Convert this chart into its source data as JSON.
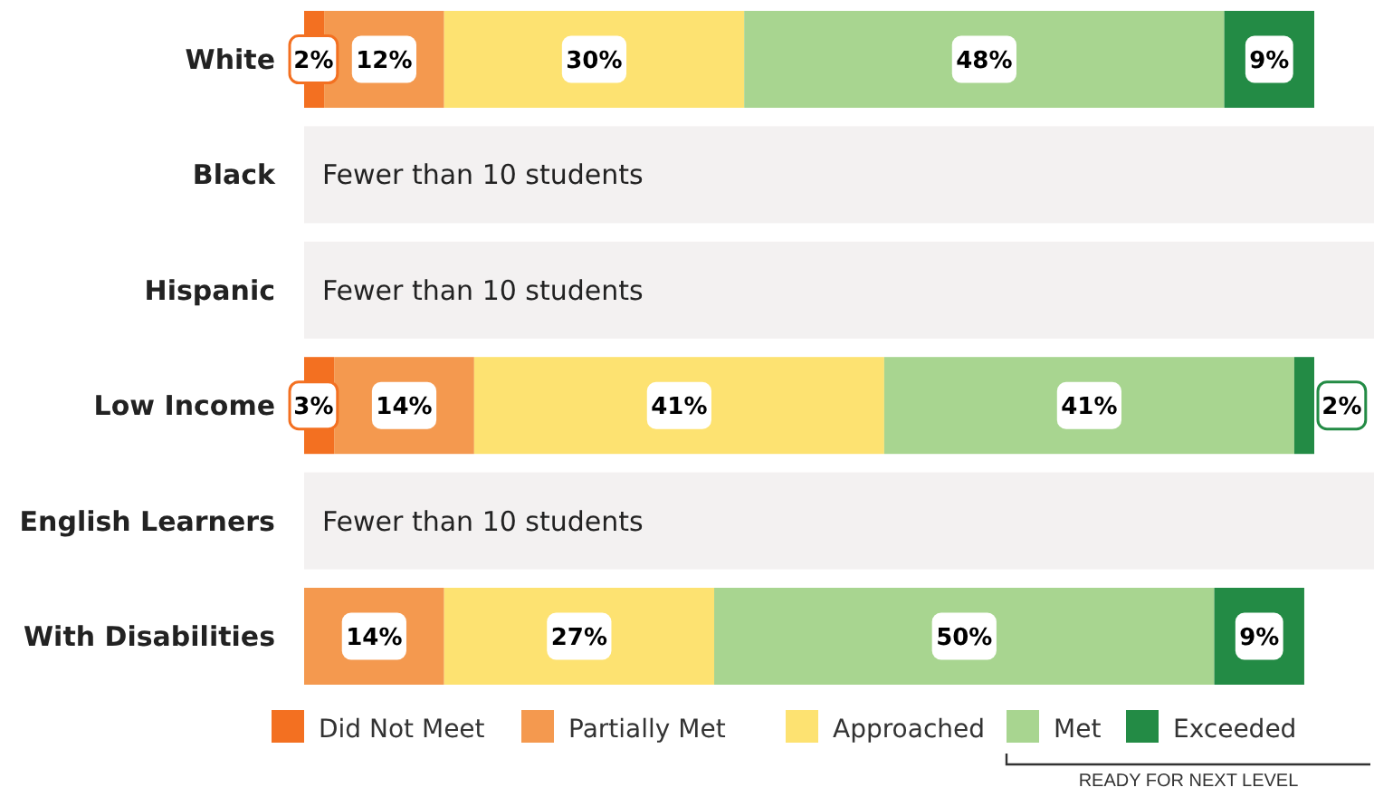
{
  "chart_data": {
    "type": "bar",
    "orientation": "horizontal",
    "stacked": true,
    "categories": [
      "White",
      "Black",
      "Hispanic",
      "Low Income",
      "English Learners",
      "With Disabilities"
    ],
    "xlim": [
      0,
      101
    ],
    "tick_labels": "y",
    "legend": "bottom",
    "series": [
      {
        "name": "Did Not Meet",
        "color": "#f37021",
        "values": [
          2,
          null,
          null,
          3,
          null,
          0
        ],
        "value_labels": [
          "2%",
          null,
          null,
          "3%",
          null,
          null
        ]
      },
      {
        "name": "Partially Met",
        "color": "#f4994f",
        "values": [
          12,
          null,
          null,
          14,
          null,
          14
        ],
        "value_labels": [
          "12%",
          null,
          null,
          "14%",
          null,
          "14%"
        ]
      },
      {
        "name": "Approached",
        "color": "#fde271",
        "values": [
          30,
          null,
          null,
          41,
          null,
          27
        ],
        "value_labels": [
          "30%",
          null,
          null,
          "41%",
          null,
          "27%"
        ]
      },
      {
        "name": "Met",
        "color": "#a8d590",
        "values": [
          48,
          null,
          null,
          41,
          null,
          50
        ],
        "value_labels": [
          "48%",
          null,
          null,
          "41%",
          null,
          "50%"
        ]
      },
      {
        "name": "Exceeded",
        "color": "#238b45",
        "values": [
          9,
          null,
          null,
          2,
          null,
          9
        ],
        "value_labels": [
          "9%",
          null,
          null,
          "2%",
          null,
          "9%"
        ]
      }
    ],
    "bands": [
      {
        "axis": "y",
        "from": "Black",
        "to": "Black",
        "label": "Fewer than 10 students",
        "color": "#f3f1f1"
      },
      {
        "axis": "y",
        "from": "Hispanic",
        "to": "Hispanic",
        "label": "Fewer than 10 students",
        "color": "#f3f1f1"
      },
      {
        "axis": "y",
        "from": "English Learners",
        "to": "English Learners",
        "label": "Fewer than 10 students",
        "color": "#f3f1f1"
      }
    ],
    "annotations": [
      "READY FOR NEXT LEVEL"
    ]
  }
}
